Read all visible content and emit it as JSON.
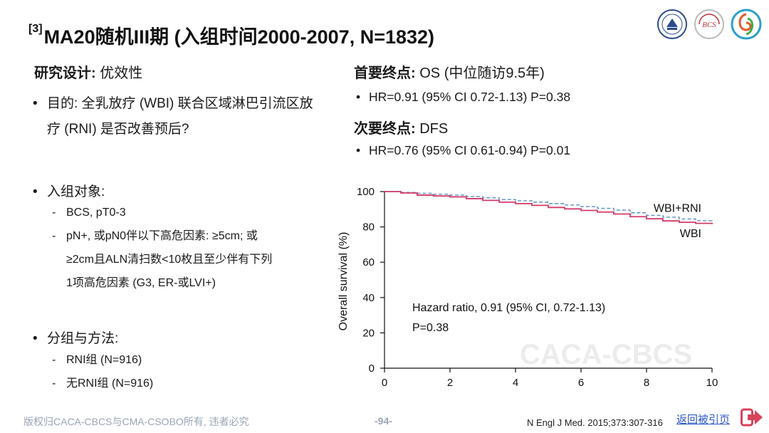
{
  "title": {
    "ref": "[3]",
    "text": "MA20随机III期 (入组时间2000-2007, N=1832)"
  },
  "logos": [
    {
      "name": "university-logo",
      "color": "#2a4c8c"
    },
    {
      "name": "bcs-logo",
      "text": "BCS",
      "color": "#c0303a"
    },
    {
      "name": "spiral-logo",
      "color": "#2aa0c8"
    }
  ],
  "left": {
    "design_label": "研究设计:",
    "design_value": "优效性",
    "bullets": [
      {
        "label": "目的: 全乳放疗 (WBI) 联合区域淋巴引流区放疗 (RNI) 是否改善预后?"
      },
      {
        "label": "入组对象:",
        "subs": [
          "BCS, pT0-3",
          "pN+, 或pN0伴以下高危因素: ≥5cm; 或",
          "≥2cm且ALN清扫数<10枚且至少伴有下列",
          "1项高危因素 (G3, ER-或LVI+)"
        ]
      },
      {
        "label": "分组与方法:",
        "subs": [
          "RNI组 (N=916)",
          "无RNI组 (N=916)"
        ]
      }
    ]
  },
  "right": {
    "primary_label": "首要终点:",
    "primary_value": "OS (中位随访9.5年)",
    "primary_result": "HR=0.91 (95% CI 0.72-1.13) P=0.38",
    "secondary_label": "次要终点:",
    "secondary_value": "DFS",
    "secondary_result": "HR=0.76 (95% CI 0.61-0.94) P=0.01"
  },
  "chart_data": {
    "type": "line",
    "ylabel": "Overall survival (%)",
    "xlabel": "",
    "xlim": [
      0,
      10
    ],
    "ylim": [
      0,
      100
    ],
    "xticks": [
      0,
      2,
      4,
      6,
      8,
      10
    ],
    "yticks": [
      0,
      20,
      40,
      60,
      80,
      100
    ],
    "annotation": [
      "Hazard ratio, 0.91 (95% CI, 0.72-1.13)",
      "P=0.38"
    ],
    "watermark": "CACA-CBCS",
    "series": [
      {
        "name": "WBI+RNI",
        "color": "#5b8fc4",
        "dashed": true,
        "x": [
          0,
          0.5,
          1,
          1.5,
          2,
          2.5,
          3,
          3.5,
          4,
          4.5,
          5,
          5.5,
          6,
          6.5,
          7,
          7.5,
          8,
          8.5,
          9,
          9.5,
          10
        ],
        "y": [
          100,
          99.5,
          99,
          98.5,
          98,
          97.2,
          96.5,
          95.5,
          94.8,
          94,
          93.2,
          92.4,
          91.5,
          90.5,
          89.5,
          88,
          86.5,
          85.5,
          84.5,
          83.5,
          82.5
        ]
      },
      {
        "name": "WBI",
        "color": "#d23a6a",
        "dashed": false,
        "x": [
          0,
          0.5,
          1,
          1.5,
          2,
          2.5,
          3,
          3.5,
          4,
          4.5,
          5,
          5.5,
          6,
          6.5,
          7,
          7.5,
          8,
          8.5,
          9,
          9.5,
          10
        ],
        "y": [
          100,
          99.2,
          98,
          97.5,
          97,
          96,
          95,
          94,
          93.2,
          92.2,
          91,
          90.2,
          89.3,
          88.4,
          87.3,
          85.8,
          84.6,
          83.4,
          82.6,
          82,
          81.5
        ]
      }
    ]
  },
  "footer": {
    "copyright": "版权归CACA-CBCS与CMA-CSOBO所有, 违者必究",
    "page": "-94-",
    "reference": "N Engl J Med. 2015;373:307-316",
    "back_label": "返回被引页",
    "back_icon": "exit-arrow-icon",
    "back_color": "#d8435a"
  }
}
